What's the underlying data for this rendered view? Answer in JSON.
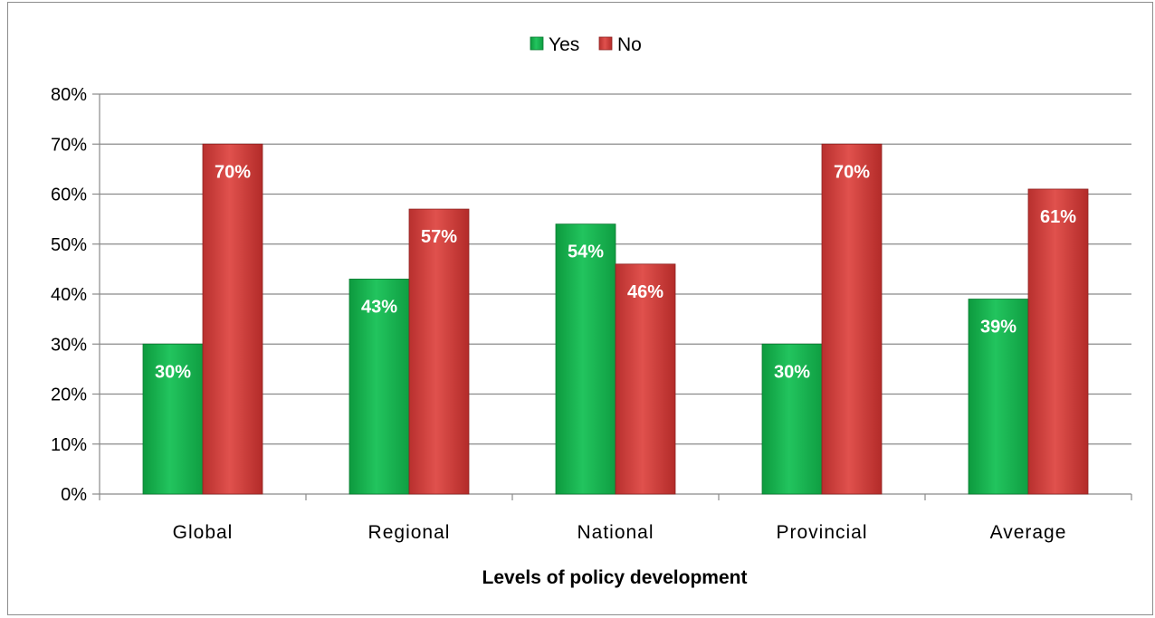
{
  "chart_data": {
    "type": "bar",
    "title": "",
    "xlabel": "Levels of policy development",
    "ylabel": "",
    "categories": [
      "Global",
      "Regional",
      "National",
      "Provincial",
      "Average"
    ],
    "series": [
      {
        "name": "Yes",
        "values": [
          30,
          43,
          54,
          30,
          39
        ],
        "color": "#1db954"
      },
      {
        "name": "No",
        "values": [
          70,
          57,
          46,
          70,
          61
        ],
        "color": "#d9423f"
      }
    ],
    "ylim": [
      0,
      80
    ],
    "yticks": [
      0,
      10,
      20,
      30,
      40,
      50,
      60,
      70,
      80
    ],
    "ytick_suffix": "%",
    "data_label_suffix": "%",
    "grid": true,
    "legend_position": "top-center"
  }
}
